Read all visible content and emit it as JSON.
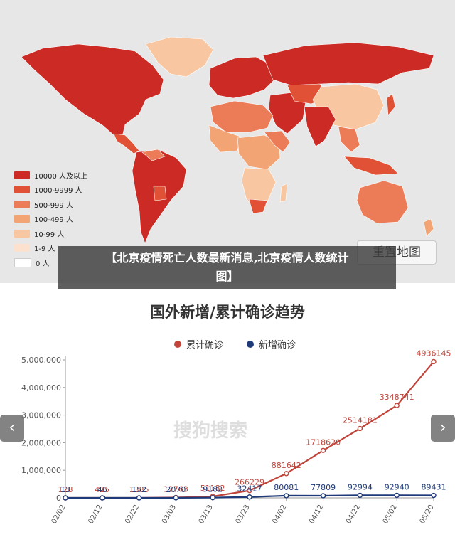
{
  "map": {
    "legend": [
      {
        "label": "10000 人及以上",
        "color": "#cc2a24"
      },
      {
        "label": "1000-9999 人",
        "color": "#e15135"
      },
      {
        "label": "500-999 人",
        "color": "#ec7b58"
      },
      {
        "label": "100-499 人",
        "color": "#f3a474"
      },
      {
        "label": "10-99 人",
        "color": "#f8c7a2"
      },
      {
        "label": "1-9 人",
        "color": "#fbe1ce"
      },
      {
        "label": "0 人",
        "color": "#ffffff"
      }
    ],
    "reset_label": "重置地图"
  },
  "overlay": {
    "line1": "【北京疫情死亡人数最新消息,北京疫情人数统计",
    "line2": "图】"
  },
  "watermark": "搜狗搜索",
  "nav": {
    "prev": "‹",
    "next": "›"
  },
  "chart_data": {
    "type": "line",
    "title": "国外新增/累计确诊趋势",
    "x": [
      "02/02",
      "02/12",
      "02/22",
      "03/03",
      "03/13",
      "03/23",
      "04/02",
      "04/12",
      "04/22",
      "05/02",
      "05/20"
    ],
    "ylim": [
      0,
      5000000
    ],
    "yticks": [
      0,
      1000000,
      2000000,
      3000000,
      4000000,
      5000000
    ],
    "ytick_labels": [
      "0",
      "1,000,000",
      "2,000,000",
      "3,000,000",
      "4,000,000",
      "5,000,000"
    ],
    "series": [
      {
        "name": "累计确诊",
        "color": "#c0443a",
        "values": [
          128,
          415,
          1385,
          12763,
          51182,
          266229,
          881642,
          1718620,
          2514181,
          3348741,
          4936145
        ],
        "labels": [
          "128",
          "415",
          "1385",
          "12763",
          "51182",
          "266229",
          "881642",
          "1718620",
          "2514181",
          "3348741",
          "4936145"
        ]
      },
      {
        "name": "新增确诊",
        "color": "#1e3a78",
        "values": [
          13,
          46,
          152,
          2070,
          9182,
          32417,
          80081,
          77809,
          92994,
          92940,
          89431
        ],
        "labels": [
          "13",
          "46",
          "152",
          "2070",
          "9182",
          "32417",
          "80081",
          "77809",
          "92994",
          "92940",
          "89431"
        ]
      }
    ],
    "legend_position": "top-center",
    "grid": false
  }
}
